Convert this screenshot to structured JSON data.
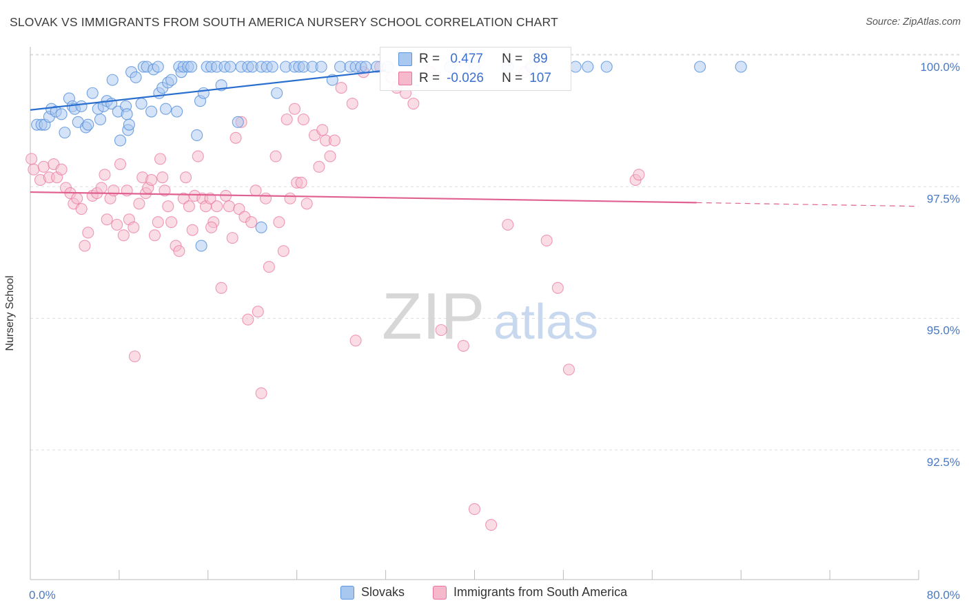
{
  "title": "SLOVAK VS IMMIGRANTS FROM SOUTH AMERICA NURSERY SCHOOL CORRELATION CHART",
  "source": "Source: ZipAtlas.com",
  "watermark": {
    "zip": "ZIP",
    "atlas": "atlas"
  },
  "colors": {
    "blue": "#5b93dd",
    "blue_fill": "#a9c8ef",
    "pink": "#e8729c",
    "pink_fill": "#f6b9cc",
    "axis_text": "#4a78c2"
  },
  "legend_box": {
    "row1": {
      "r_label": "R =",
      "r_value": " 0.477",
      "n_label": "N =",
      "n_value": " 89"
    },
    "row2": {
      "r_label": "R =",
      "r_value": "-0.026",
      "n_label": "N =",
      "n_value": "107"
    }
  },
  "bottom_legend": {
    "series1": "Slovaks",
    "series2": "Immigrants from South America"
  },
  "chart_data": {
    "type": "scatter",
    "title": "SLOVAK VS IMMIGRANTS FROM SOUTH AMERICA NURSERY SCHOOL CORRELATION CHART",
    "xlabel": "",
    "ylabel": "Nursery School",
    "xlim": [
      0,
      80
    ],
    "ylim": [
      90.5,
      100.4
    ],
    "x_tick_labels": [
      "0.0%",
      "80.0%"
    ],
    "y_ticks": [
      100.0,
      97.5,
      95.0,
      92.5
    ],
    "y_tick_labels": [
      "100.0%",
      "97.5%",
      "95.0%",
      "92.5%"
    ],
    "grid": true,
    "legend_position": "top-center",
    "series": [
      {
        "name": "Slovaks",
        "R": 0.477,
        "N": 89,
        "trend": {
          "x": [
            0,
            32
          ],
          "y": [
            99.18,
            99.93
          ]
        },
        "points": [
          [
            0.6,
            98.9
          ],
          [
            1.0,
            98.9
          ],
          [
            1.3,
            98.9
          ],
          [
            1.7,
            99.05
          ],
          [
            1.9,
            99.2
          ],
          [
            2.3,
            99.15
          ],
          [
            2.8,
            99.1
          ],
          [
            3.1,
            98.75
          ],
          [
            3.5,
            99.4
          ],
          [
            3.8,
            99.25
          ],
          [
            4.0,
            99.2
          ],
          [
            4.3,
            98.95
          ],
          [
            4.6,
            99.25
          ],
          [
            5.0,
            98.85
          ],
          [
            5.2,
            98.9
          ],
          [
            5.6,
            99.5
          ],
          [
            6.1,
            99.2
          ],
          [
            6.3,
            99.0
          ],
          [
            6.6,
            99.25
          ],
          [
            6.9,
            99.35
          ],
          [
            7.3,
            99.3
          ],
          [
            7.4,
            99.75
          ],
          [
            7.9,
            99.15
          ],
          [
            8.1,
            98.6
          ],
          [
            8.6,
            99.25
          ],
          [
            8.7,
            99.1
          ],
          [
            8.8,
            98.8
          ],
          [
            9.1,
            99.9
          ],
          [
            9.5,
            99.8
          ],
          [
            10.0,
            99.3
          ],
          [
            10.2,
            100.0
          ],
          [
            10.5,
            100.0
          ],
          [
            10.9,
            99.15
          ],
          [
            11.1,
            99.95
          ],
          [
            11.5,
            100.0
          ],
          [
            11.6,
            99.5
          ],
          [
            11.9,
            99.6
          ],
          [
            12.2,
            99.2
          ],
          [
            12.4,
            99.7
          ],
          [
            12.7,
            99.75
          ],
          [
            13.2,
            99.15
          ],
          [
            13.4,
            100.0
          ],
          [
            13.6,
            99.9
          ],
          [
            13.8,
            100.0
          ],
          [
            14.2,
            100.0
          ],
          [
            14.5,
            100.0
          ],
          [
            15.0,
            98.7
          ],
          [
            15.3,
            99.35
          ],
          [
            15.6,
            99.5
          ],
          [
            15.9,
            100.0
          ],
          [
            16.3,
            100.0
          ],
          [
            16.8,
            100.0
          ],
          [
            17.2,
            99.65
          ],
          [
            17.5,
            100.0
          ],
          [
            18.0,
            100.0
          ],
          [
            19.0,
            100.0
          ],
          [
            19.6,
            100.0
          ],
          [
            20.0,
            100.0
          ],
          [
            20.8,
            100.0
          ],
          [
            21.3,
            100.0
          ],
          [
            21.8,
            100.0
          ],
          [
            22.2,
            99.5
          ],
          [
            23.0,
            100.0
          ],
          [
            23.8,
            100.0
          ],
          [
            24.2,
            100.0
          ],
          [
            24.6,
            100.0
          ],
          [
            25.4,
            100.0
          ],
          [
            26.2,
            100.0
          ],
          [
            27.2,
            99.75
          ],
          [
            27.9,
            100.0
          ],
          [
            28.8,
            100.0
          ],
          [
            29.3,
            100.0
          ],
          [
            29.8,
            100.0
          ],
          [
            30.2,
            100.0
          ],
          [
            31.2,
            100.0
          ],
          [
            32.2,
            100.0
          ],
          [
            37.8,
            100.0
          ],
          [
            40.0,
            100.0
          ],
          [
            43.0,
            100.0
          ],
          [
            45.1,
            100.0
          ],
          [
            49.1,
            100.0
          ],
          [
            50.2,
            100.0
          ],
          [
            51.9,
            100.0
          ],
          [
            60.3,
            100.0
          ],
          [
            64.0,
            100.0
          ],
          [
            18.7,
            98.95
          ],
          [
            15.4,
            96.6
          ],
          [
            20.8,
            96.95
          ],
          [
            8.9,
            98.9
          ]
        ]
      },
      {
        "name": "Immigrants from South America",
        "R": -0.026,
        "N": 107,
        "trend": {
          "x": [
            0,
            60
          ],
          "y": [
            97.62,
            97.42
          ]
        },
        "trend_dashed": {
          "x": [
            60,
            80
          ],
          "y": [
            97.42,
            97.35
          ]
        },
        "points": [
          [
            0.1,
            98.25
          ],
          [
            0.3,
            98.05
          ],
          [
            0.9,
            97.85
          ],
          [
            1.2,
            98.1
          ],
          [
            1.7,
            97.9
          ],
          [
            2.1,
            98.15
          ],
          [
            2.4,
            97.9
          ],
          [
            2.8,
            98.05
          ],
          [
            3.2,
            97.7
          ],
          [
            3.6,
            97.6
          ],
          [
            3.9,
            97.4
          ],
          [
            4.2,
            97.5
          ],
          [
            4.6,
            97.3
          ],
          [
            4.9,
            96.6
          ],
          [
            5.2,
            96.85
          ],
          [
            5.6,
            97.55
          ],
          [
            6.0,
            97.6
          ],
          [
            6.4,
            97.7
          ],
          [
            6.7,
            97.95
          ],
          [
            6.9,
            97.1
          ],
          [
            7.2,
            97.5
          ],
          [
            7.5,
            97.65
          ],
          [
            7.8,
            97.0
          ],
          [
            8.1,
            98.15
          ],
          [
            8.4,
            96.8
          ],
          [
            8.7,
            97.65
          ],
          [
            8.9,
            97.1
          ],
          [
            9.3,
            96.95
          ],
          [
            9.4,
            94.5
          ],
          [
            9.8,
            97.4
          ],
          [
            10.1,
            97.9
          ],
          [
            10.4,
            97.6
          ],
          [
            10.6,
            97.7
          ],
          [
            10.9,
            97.85
          ],
          [
            11.2,
            96.8
          ],
          [
            11.5,
            97.05
          ],
          [
            11.7,
            98.25
          ],
          [
            11.9,
            97.9
          ],
          [
            12.1,
            97.65
          ],
          [
            12.4,
            97.35
          ],
          [
            12.7,
            97.05
          ],
          [
            13.1,
            96.6
          ],
          [
            13.4,
            96.5
          ],
          [
            13.8,
            97.5
          ],
          [
            14.0,
            97.9
          ],
          [
            14.3,
            97.35
          ],
          [
            14.6,
            96.9
          ],
          [
            14.8,
            97.55
          ],
          [
            15.1,
            98.3
          ],
          [
            15.5,
            97.5
          ],
          [
            15.8,
            97.35
          ],
          [
            16.2,
            97.5
          ],
          [
            16.5,
            97.05
          ],
          [
            16.8,
            97.35
          ],
          [
            17.2,
            95.8
          ],
          [
            17.6,
            97.55
          ],
          [
            17.9,
            97.35
          ],
          [
            18.2,
            96.75
          ],
          [
            18.5,
            98.65
          ],
          [
            18.8,
            97.3
          ],
          [
            19.0,
            98.95
          ],
          [
            19.3,
            97.15
          ],
          [
            19.6,
            95.2
          ],
          [
            19.9,
            97.05
          ],
          [
            20.3,
            97.65
          ],
          [
            20.5,
            95.35
          ],
          [
            20.8,
            93.8
          ],
          [
            21.2,
            97.5
          ],
          [
            21.5,
            96.2
          ],
          [
            22.1,
            98.3
          ],
          [
            22.4,
            97.05
          ],
          [
            22.8,
            96.5
          ],
          [
            23.1,
            99.0
          ],
          [
            23.4,
            97.5
          ],
          [
            23.8,
            99.2
          ],
          [
            24.0,
            97.8
          ],
          [
            24.4,
            97.8
          ],
          [
            24.6,
            99.0
          ],
          [
            24.9,
            97.4
          ],
          [
            25.6,
            98.7
          ],
          [
            26.0,
            98.1
          ],
          [
            26.3,
            98.8
          ],
          [
            26.6,
            98.6
          ],
          [
            27.0,
            98.3
          ],
          [
            27.4,
            98.6
          ],
          [
            28.0,
            99.6
          ],
          [
            29.0,
            99.3
          ],
          [
            30.0,
            99.9
          ],
          [
            31.5,
            100.0
          ],
          [
            32.5,
            99.8
          ],
          [
            33.0,
            99.6
          ],
          [
            33.8,
            99.5
          ],
          [
            34.5,
            99.3
          ],
          [
            36.0,
            99.9
          ],
          [
            37.0,
            95.0
          ],
          [
            39.0,
            94.7
          ],
          [
            40.0,
            91.6
          ],
          [
            41.5,
            91.3
          ],
          [
            43.0,
            97.0
          ],
          [
            44.5,
            99.9
          ],
          [
            46.5,
            96.7
          ],
          [
            47.5,
            95.8
          ],
          [
            48.5,
            94.25
          ],
          [
            54.5,
            97.85
          ],
          [
            54.8,
            97.95
          ],
          [
            29.3,
            94.8
          ],
          [
            16.3,
            96.95
          ]
        ]
      }
    ]
  }
}
